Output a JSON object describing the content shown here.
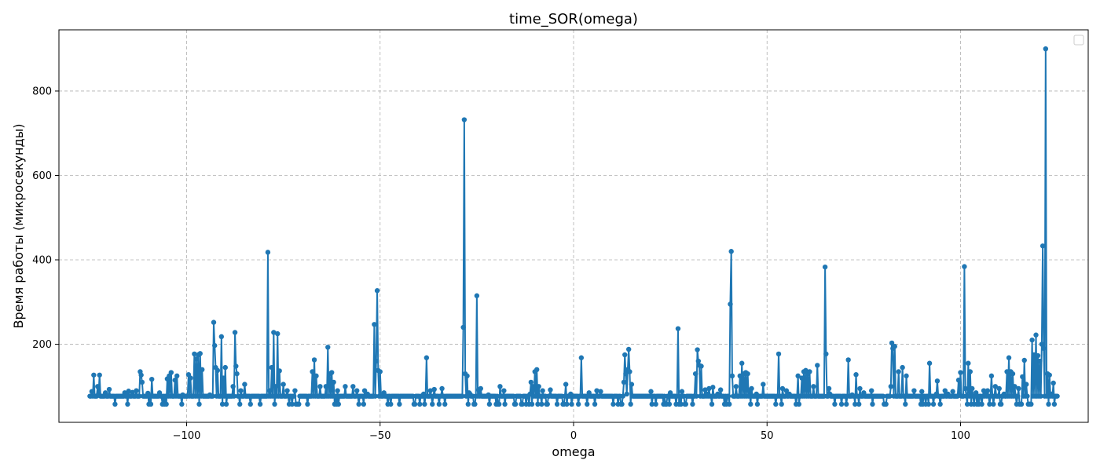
{
  "chart_data": {
    "type": "line",
    "title": "time_SOR(omega)",
    "xlabel": "omega",
    "ylabel": "Время работы (микросекунды)",
    "xlim": [
      -133,
      133
    ],
    "ylim": [
      15,
      945
    ],
    "x_ticks": [
      -100,
      -50,
      0,
      50,
      100
    ],
    "y_ticks": [
      200,
      400,
      600,
      800
    ],
    "x_tick_labels": [
      "−100",
      "−50",
      "0",
      "50",
      "100"
    ],
    "y_tick_labels": [
      "200",
      "400",
      "600",
      "800"
    ],
    "grid": true,
    "grid_style": "dashed",
    "legend": "upper-right (empty)",
    "colors": {
      "series": "#1f77b4",
      "grid": "#b0b0b0",
      "axes": "#000000"
    },
    "series": [
      {
        "marker": "circle",
        "x_range": [
          -125,
          125
        ],
        "x_step": 0.25,
        "baseline": 77,
        "low_value": 58,
        "peaks": [
          [
            -124.5,
            88
          ],
          [
            -124,
            127
          ],
          [
            -123,
            100
          ],
          [
            -122.5,
            127
          ],
          [
            -121,
            85
          ],
          [
            -120,
            93
          ],
          [
            -116,
            85
          ],
          [
            -115,
            89
          ],
          [
            -114,
            86
          ],
          [
            -113,
            90
          ],
          [
            -112,
            135
          ],
          [
            -111.75,
            127
          ],
          [
            -111.5,
            110
          ],
          [
            -110,
            84
          ],
          [
            -109,
            117
          ],
          [
            -107,
            85
          ],
          [
            -105,
            118
          ],
          [
            -104.5,
            125
          ],
          [
            -104,
            133
          ],
          [
            -103,
            115
          ],
          [
            -102.5,
            125
          ],
          [
            -101,
            80
          ],
          [
            -99.5,
            128
          ],
          [
            -99,
            120
          ],
          [
            -98,
            177
          ],
          [
            -97.5,
            165
          ],
          [
            -97,
            175
          ],
          [
            -96.5,
            178
          ],
          [
            -96,
            140
          ],
          [
            -94,
            80
          ],
          [
            -93,
            252
          ],
          [
            -92.75,
            197
          ],
          [
            -92.5,
            145
          ],
          [
            -92,
            138
          ],
          [
            -91,
            218
          ],
          [
            -90.5,
            120
          ],
          [
            -90,
            145
          ],
          [
            -88,
            100
          ],
          [
            -87.5,
            228
          ],
          [
            -87.25,
            148
          ],
          [
            -87,
            130
          ],
          [
            -86,
            90
          ],
          [
            -85,
            105
          ],
          [
            -79,
            418
          ],
          [
            -78.5,
            90
          ],
          [
            -78,
            145
          ],
          [
            -77.5,
            228
          ],
          [
            -77,
            100
          ],
          [
            -76.5,
            225
          ],
          [
            -76,
            137
          ],
          [
            -75,
            105
          ],
          [
            -74,
            90
          ],
          [
            -72,
            90
          ],
          [
            -67.5,
            135
          ],
          [
            -67,
            163
          ],
          [
            -66.5,
            125
          ],
          [
            -65.5,
            100
          ],
          [
            -64,
            100
          ],
          [
            -63.5,
            193
          ],
          [
            -63,
            130
          ],
          [
            -62.5,
            133
          ],
          [
            -62,
            110
          ],
          [
            -61,
            90
          ],
          [
            -59,
            100
          ],
          [
            -57,
            100
          ],
          [
            -56,
            90
          ],
          [
            -54,
            90
          ],
          [
            -51.5,
            247
          ],
          [
            -51,
            160
          ],
          [
            -50.75,
            327
          ],
          [
            -50.5,
            138
          ],
          [
            -50,
            135
          ],
          [
            -49,
            85
          ],
          [
            -38,
            168
          ],
          [
            -37,
            90
          ],
          [
            -36,
            93
          ],
          [
            -34,
            95
          ],
          [
            -28.5,
            240
          ],
          [
            -28.25,
            732
          ],
          [
            -28,
            130
          ],
          [
            -27.5,
            125
          ],
          [
            -27,
            85
          ],
          [
            -25,
            315
          ],
          [
            -24.5,
            92
          ],
          [
            -24,
            95
          ],
          [
            -22,
            80
          ],
          [
            -19,
            100
          ],
          [
            -18,
            90
          ],
          [
            -11,
            110
          ],
          [
            -10.5,
            100
          ],
          [
            -10,
            135
          ],
          [
            -9.5,
            140
          ],
          [
            -9,
            100
          ],
          [
            -8,
            90
          ],
          [
            -6,
            92
          ],
          [
            -2,
            105
          ],
          [
            2,
            168
          ],
          [
            4,
            85
          ],
          [
            6,
            90
          ],
          [
            7,
            88
          ],
          [
            13,
            110
          ],
          [
            13.25,
            175
          ],
          [
            13.5,
            130
          ],
          [
            14,
            140
          ],
          [
            14.25,
            188
          ],
          [
            14.5,
            135
          ],
          [
            15,
            105
          ],
          [
            20,
            88
          ],
          [
            25,
            85
          ],
          [
            27,
            237
          ],
          [
            28,
            88
          ],
          [
            31.5,
            130
          ],
          [
            32,
            187
          ],
          [
            32.25,
            160
          ],
          [
            32.5,
            150
          ],
          [
            33,
            148
          ],
          [
            34,
            92
          ],
          [
            35,
            95
          ],
          [
            36,
            98
          ],
          [
            38,
            92
          ],
          [
            40.5,
            295
          ],
          [
            40.75,
            420
          ],
          [
            41,
            125
          ],
          [
            42,
            100
          ],
          [
            43,
            125
          ],
          [
            43.5,
            155
          ],
          [
            44,
            130
          ],
          [
            44.5,
            133
          ],
          [
            45,
            130
          ],
          [
            45.5,
            90
          ],
          [
            46,
            95
          ],
          [
            49,
            105
          ],
          [
            53,
            177
          ],
          [
            54,
            95
          ],
          [
            55,
            90
          ],
          [
            58,
            125
          ],
          [
            59,
            120
          ],
          [
            59.5,
            135
          ],
          [
            60,
            138
          ],
          [
            60.5,
            130
          ],
          [
            61,
            135
          ],
          [
            62,
            100
          ],
          [
            63,
            150
          ],
          [
            65,
            383
          ],
          [
            65.25,
            177
          ],
          [
            66,
            95
          ],
          [
            71,
            163
          ],
          [
            72,
            80
          ],
          [
            73,
            128
          ],
          [
            74,
            95
          ],
          [
            75,
            85
          ],
          [
            77,
            90
          ],
          [
            82,
            100
          ],
          [
            82.25,
            203
          ],
          [
            82.5,
            190
          ],
          [
            83,
            195
          ],
          [
            84,
            135
          ],
          [
            85,
            145
          ],
          [
            86,
            125
          ],
          [
            88,
            90
          ],
          [
            90,
            88
          ],
          [
            92,
            155
          ],
          [
            94,
            113
          ],
          [
            96,
            90
          ],
          [
            98,
            88
          ],
          [
            99.5,
            115
          ],
          [
            100,
            133
          ],
          [
            101,
            384
          ],
          [
            101.25,
            95
          ],
          [
            102,
            155
          ],
          [
            102.5,
            135
          ],
          [
            103,
            95
          ],
          [
            104,
            85
          ],
          [
            106,
            90
          ],
          [
            107,
            90
          ],
          [
            108,
            125
          ],
          [
            109,
            100
          ],
          [
            110,
            95
          ],
          [
            112,
            135
          ],
          [
            112.5,
            168
          ],
          [
            113,
            135
          ],
          [
            113.5,
            130
          ],
          [
            114,
            100
          ],
          [
            115,
            95
          ],
          [
            116,
            123
          ],
          [
            116.5,
            162
          ],
          [
            117,
            105
          ],
          [
            118.5,
            210
          ],
          [
            119,
            175
          ],
          [
            119.5,
            222
          ],
          [
            120,
            173
          ],
          [
            120.5,
            160
          ],
          [
            121,
            200
          ],
          [
            121.25,
            433
          ],
          [
            121.5,
            190
          ],
          [
            122,
            900
          ],
          [
            122.5,
            130
          ],
          [
            123,
            127
          ],
          [
            124,
            108
          ]
        ]
      }
    ]
  }
}
